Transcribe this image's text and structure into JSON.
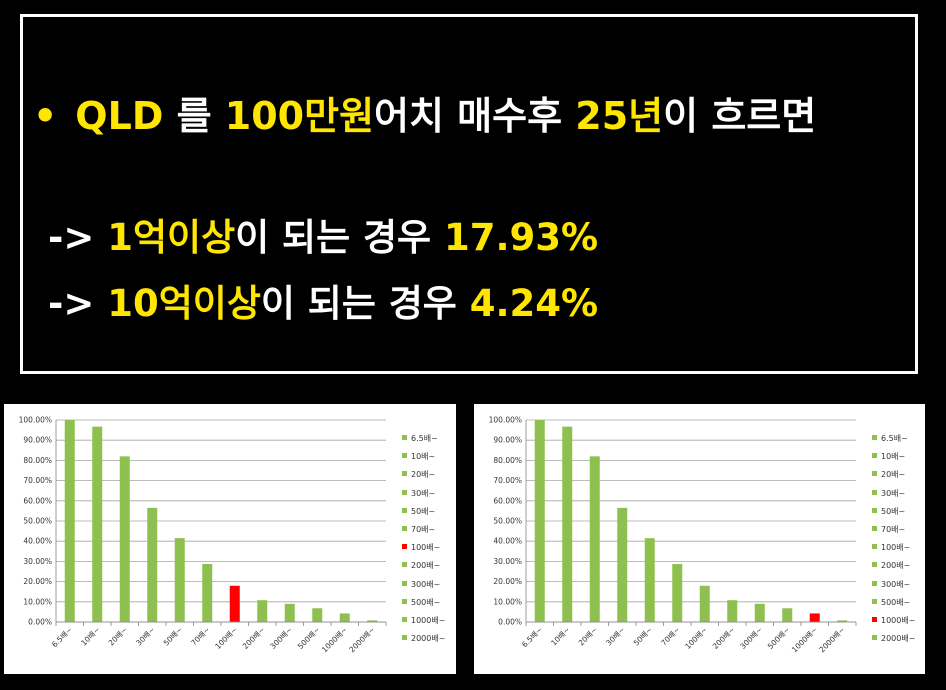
{
  "headline": {
    "bullet": "•",
    "line1": [
      {
        "text": "QLD",
        "hl": true
      },
      {
        "text": " 를 ",
        "hl": false
      },
      {
        "text": "100만원",
        "hl": true
      },
      {
        "text": "어치 매수후 ",
        "hl": false
      },
      {
        "text": "25년",
        "hl": true
      },
      {
        "text": "이 흐르면",
        "hl": false
      }
    ],
    "line2": [
      {
        "text": "-> ",
        "hl": false
      },
      {
        "text": "1억이상",
        "hl": true
      },
      {
        "text": "이 되는 경우 ",
        "hl": false
      },
      {
        "text": "17.93%",
        "hl": true
      }
    ],
    "line3": [
      {
        "text": "-> ",
        "hl": false
      },
      {
        "text": "10억이상",
        "hl": true
      },
      {
        "text": "이 되는 경우 ",
        "hl": false
      },
      {
        "text": "4.24%",
        "hl": true
      }
    ]
  },
  "colors": {
    "bar": "#8dc04f",
    "highlight": "#ff0000",
    "yellow": "#ffe600"
  },
  "chart_data": [
    {
      "type": "bar",
      "categories": [
        "6.5배~",
        "10배~",
        "20배~",
        "30배~",
        "50배~",
        "70배~",
        "100배~",
        "200배~",
        "300배~",
        "500배~",
        "1000배~",
        "2000배~"
      ],
      "values": [
        100,
        96.7,
        82,
        56.5,
        41.5,
        28.7,
        17.93,
        10.8,
        9,
        6.8,
        4.24,
        0.8
      ],
      "highlight_index": 6,
      "ylim": [
        0,
        100
      ],
      "yticks": [
        "0.00%",
        "10.00%",
        "20.00%",
        "30.00%",
        "40.00%",
        "50.00%",
        "60.00%",
        "70.00%",
        "80.00%",
        "90.00%",
        "100.00%"
      ],
      "legend": [
        "6.5배~",
        "10배~",
        "20배~",
        "30배~",
        "50배~",
        "70배~",
        "100배~",
        "200배~",
        "300배~",
        "500배~",
        "1000배~",
        "2000배~"
      ],
      "legend_position": "right",
      "grid": true
    },
    {
      "type": "bar",
      "categories": [
        "6.5배~",
        "10배~",
        "20배~",
        "30배~",
        "50배~",
        "70배~",
        "100배~",
        "200배~",
        "300배~",
        "500배~",
        "1000배~",
        "2000배~"
      ],
      "values": [
        100,
        96.7,
        82,
        56.5,
        41.5,
        28.7,
        17.93,
        10.8,
        9,
        6.8,
        4.24,
        0.8
      ],
      "highlight_index": 10,
      "ylim": [
        0,
        100
      ],
      "yticks": [
        "0.00%",
        "10.00%",
        "20.00%",
        "30.00%",
        "40.00%",
        "50.00%",
        "60.00%",
        "70.00%",
        "80.00%",
        "90.00%",
        "100.00%"
      ],
      "legend": [
        "6.5배~",
        "10배~",
        "20배~",
        "30배~",
        "50배~",
        "70배~",
        "100배~",
        "200배~",
        "300배~",
        "500배~",
        "1000배~",
        "2000배~"
      ],
      "legend_position": "right",
      "grid": true
    }
  ]
}
